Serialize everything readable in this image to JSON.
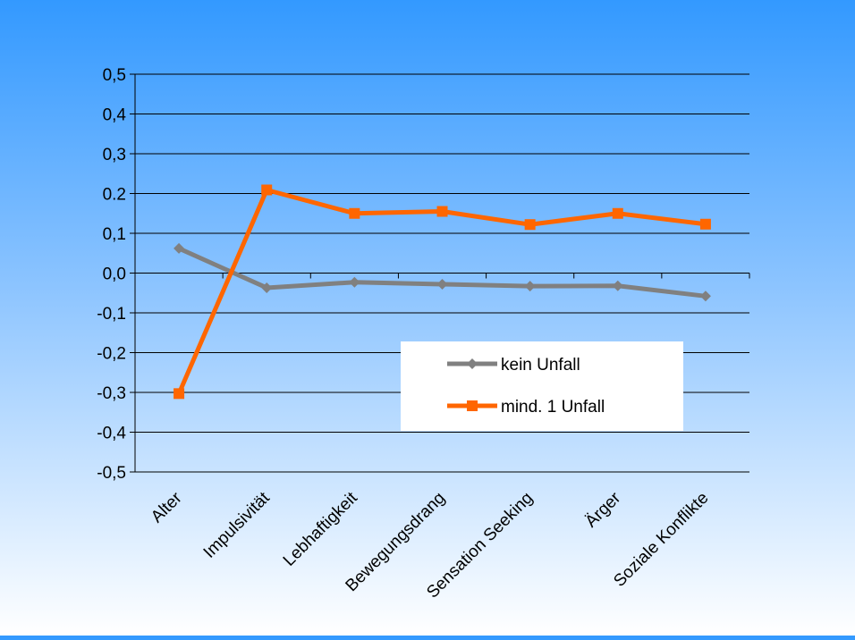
{
  "chart_data": {
    "type": "line",
    "categories": [
      "Alter",
      "Impulsivität",
      "Lebhaftigkeit",
      "Bewegungsdrang",
      "Sensation Seeking",
      "Ärger",
      "Soziale Konflikte"
    ],
    "series": [
      {
        "name": "kein Unfall",
        "color": "#808080",
        "marker": "diamond",
        "values": [
          0.062,
          -0.037,
          -0.023,
          -0.028,
          -0.033,
          -0.032,
          -0.058
        ]
      },
      {
        "name": "mind. 1 Unfall",
        "color": "#ff6600",
        "marker": "square",
        "values": [
          -0.303,
          0.209,
          0.15,
          0.155,
          0.122,
          0.15,
          0.123
        ]
      }
    ],
    "yticks": [
      "0,5",
      "0,4",
      "0,3",
      "0.2",
      "0,1",
      "0,0",
      "-0,1",
      "-0,2",
      "-0,3",
      "-0,4",
      "-0,5"
    ],
    "ylim": [
      -0.5,
      0.5
    ],
    "grid": true,
    "legend_position": "lower-right inside plot"
  }
}
